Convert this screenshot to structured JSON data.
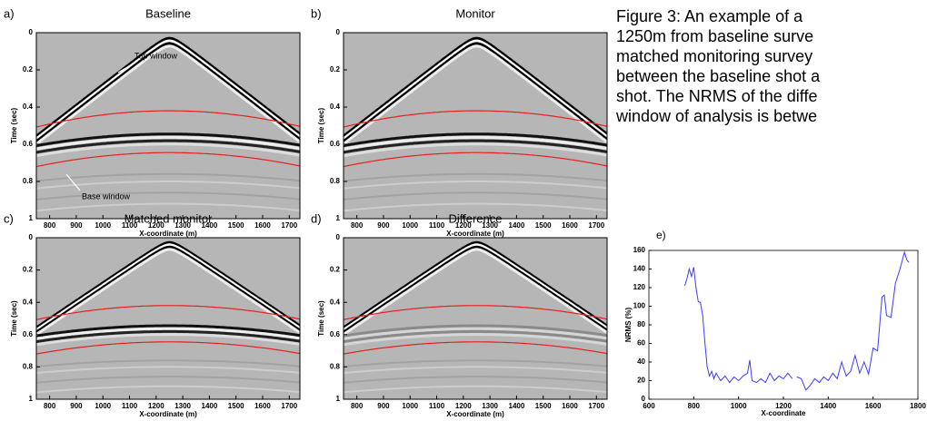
{
  "figure": {
    "axes": {
      "xlim": [
        750,
        1740
      ],
      "ylim": [
        0,
        1
      ],
      "xticks": [
        800,
        900,
        1000,
        1100,
        1200,
        1300,
        1400,
        1500,
        1600,
        1700
      ],
      "yticks": [
        0,
        0.2,
        0.4,
        0.6,
        0.8,
        1
      ],
      "xlabel": "X-coordinate (m)",
      "ylabel": "Time (sec)"
    },
    "panels": [
      {
        "label": "a)",
        "title": "Baseline"
      },
      {
        "label": "b)",
        "title": "Monitor"
      },
      {
        "label": "c)",
        "title": "Matched monitor"
      },
      {
        "label": "d)",
        "title": "Difference"
      }
    ],
    "annotations": [
      "Top window",
      "Base window"
    ]
  },
  "caption": {
    "lines": [
      "Figure 3: An example of a",
      "1250m from baseline surve",
      "matched monitoring survey",
      "between the baseline shot a",
      "shot. The NRMS of the diffe",
      "window of analysis is betwe"
    ]
  },
  "chart_data": {
    "type": "line",
    "label": "e)",
    "xlabel": "X-coordinate",
    "ylabel": "NRMS (%)",
    "xlim": [
      600,
      1800
    ],
    "ylim": [
      0,
      160
    ],
    "xticks": [
      600,
      800,
      1000,
      1200,
      1400,
      1600,
      1800
    ],
    "yticks": [
      0,
      20,
      40,
      60,
      80,
      100,
      120,
      140,
      160
    ],
    "series": [
      {
        "color": "#3b3bff",
        "x": [
          760,
          770,
          780,
          790,
          800,
          810,
          820,
          830,
          840,
          850,
          860,
          870,
          880,
          890,
          900,
          920,
          940,
          960,
          980,
          1000,
          1020,
          1040,
          1050,
          1060,
          1080,
          1100,
          1120,
          1140,
          1160,
          1180,
          1200,
          1220,
          1240,
          1250,
          1260,
          1280,
          1300,
          1320,
          1340,
          1360,
          1380,
          1400,
          1420,
          1440,
          1460,
          1480,
          1500,
          1520,
          1540,
          1560,
          1580,
          1600,
          1620,
          1640,
          1650,
          1660,
          1680,
          1700,
          1720,
          1740,
          1750,
          1760
        ],
        "values": [
          122,
          130,
          140,
          132,
          142,
          120,
          105,
          104,
          90,
          60,
          35,
          25,
          30,
          22,
          28,
          20,
          25,
          18,
          24,
          20,
          25,
          28,
          42,
          20,
          18,
          22,
          18,
          28,
          20,
          25,
          22,
          28,
          22,
          null,
          24,
          22,
          10,
          15,
          22,
          18,
          24,
          20,
          28,
          22,
          40,
          25,
          30,
          47,
          28,
          40,
          27,
          55,
          52,
          110,
          112,
          90,
          88,
          125,
          140,
          158,
          150,
          147
        ]
      }
    ]
  }
}
